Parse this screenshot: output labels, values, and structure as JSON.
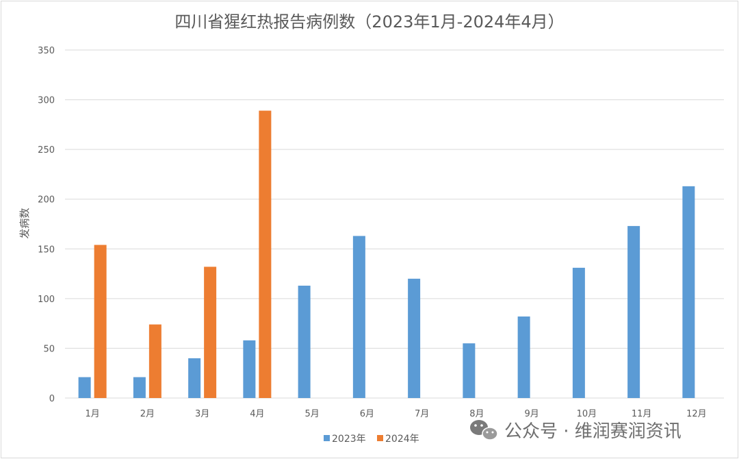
{
  "chart_data": {
    "type": "bar",
    "title": "四川省猩红热报告病例数（2023年1月-2024年4月）",
    "ylabel": "发病数",
    "xlabel": "",
    "ylim": [
      0,
      350
    ],
    "yticks": [
      0,
      50,
      100,
      150,
      200,
      250,
      300,
      350
    ],
    "grid": true,
    "legend_position": "bottom",
    "categories": [
      "1月",
      "2月",
      "3月",
      "4月",
      "5月",
      "6月",
      "7月",
      "8月",
      "9月",
      "10月",
      "11月",
      "12月"
    ],
    "series": [
      {
        "name": "2023年",
        "color": "#5b9bd5",
        "values": [
          21,
          21,
          40,
          58,
          113,
          163,
          120,
          55,
          82,
          131,
          173,
          213
        ]
      },
      {
        "name": "2024年",
        "color": "#ed7d31",
        "values": [
          154,
          74,
          132,
          289,
          null,
          null,
          null,
          null,
          null,
          null,
          null,
          null
        ]
      }
    ]
  },
  "watermark": {
    "text": "公众号 · 维润赛润资讯",
    "icon": "wechat-icon"
  }
}
